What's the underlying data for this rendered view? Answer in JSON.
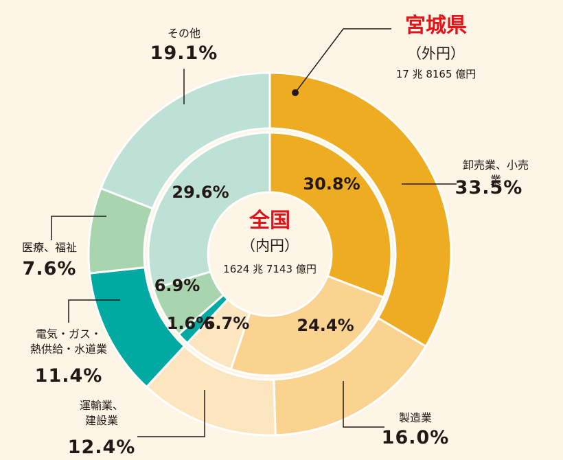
{
  "chart_data": {
    "type": "nested-donut",
    "categories": [
      "卸売業、小売業",
      "製造業",
      "運輸業、\n建設業",
      "電気・ガス・\n熱供給・水道業",
      "医療、福祉",
      "その他"
    ],
    "colors": [
      "#eeac22",
      "#f9d38f",
      "#fce6c0",
      "#00a9a1",
      "#a8d4ae",
      "#bde1d4"
    ],
    "series": [
      {
        "name": "宮城県",
        "ring_label": "（外円）",
        "total_label": "17 兆 8165 億円",
        "values": [
          33.5,
          16.0,
          12.4,
          11.4,
          7.6,
          19.1
        ],
        "value_labels": [
          "33.5%",
          "16.0%",
          "12.4%",
          "11.4%",
          "7.6%",
          "19.1%"
        ]
      },
      {
        "name": "全国",
        "ring_label": "（内円）",
        "total_label": "1624 兆 7143 億円",
        "values": [
          30.8,
          24.4,
          6.7,
          1.6,
          6.9,
          29.6
        ],
        "value_labels": [
          "30.8%",
          "24.4%",
          "6.7%",
          "1.6%",
          "6.9%",
          "29.6%"
        ]
      }
    ]
  }
}
